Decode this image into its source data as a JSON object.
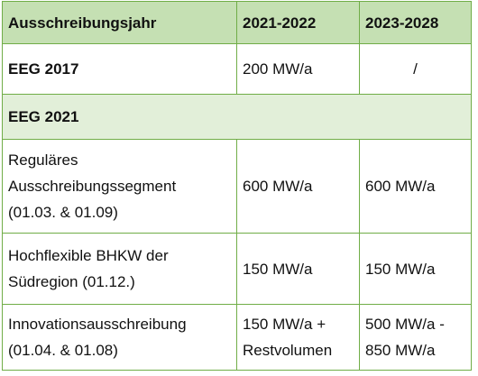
{
  "table": {
    "header": [
      "Ausschreibungsjahr",
      "2021-2022",
      "2023-2028"
    ],
    "rows": [
      [
        "EEG 2017",
        "200 MW/a",
        "/"
      ],
      [
        "EEG 2021"
      ],
      [
        "Reguläres\nAusschreibungssegment\n(01.03. & 01.09)",
        "600 MW/a",
        "600 MW/a"
      ],
      [
        "Hochflexible BHKW der\nSüdregion (01.12.)",
        "150 MW/a",
        "150 MW/a"
      ],
      [
        "Innovationsausschreibung\n(01.04. & 01.08)",
        "150 MW/a +\nRestvolumen",
        "500 MW/a -\n850 MW/a"
      ]
    ]
  }
}
